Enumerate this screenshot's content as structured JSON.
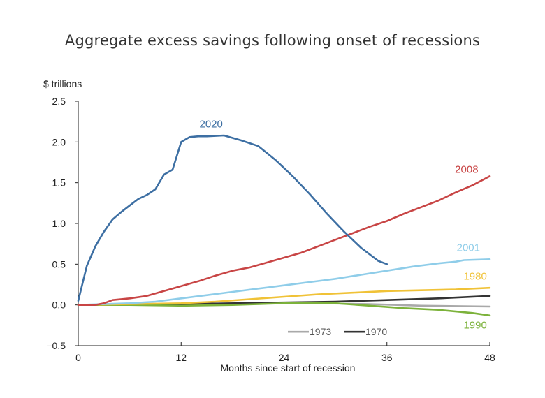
{
  "chart_data": {
    "type": "line",
    "title": "Aggregate excess savings following onset of recessions",
    "xlabel": "Months since start of recession",
    "ylabel": "$ trillions",
    "xlim": [
      0,
      48
    ],
    "ylim": [
      -0.5,
      2.5
    ],
    "xticks": [
      "0",
      "12",
      "24",
      "36",
      "48"
    ],
    "yticks": [
      "2.5",
      "2.0",
      "1.5",
      "1.0",
      "0.5",
      "0.0",
      "−0.5"
    ],
    "grid": false,
    "legend": {
      "placement": "bottom-right",
      "entries": [
        "1973",
        "1970"
      ]
    },
    "series": [
      {
        "name": "2020",
        "color": "#3d6fa3",
        "label_at": [
          15.5,
          2.18
        ],
        "points": [
          [
            0,
            0.05
          ],
          [
            1,
            0.48
          ],
          [
            2,
            0.72
          ],
          [
            3,
            0.9
          ],
          [
            4,
            1.05
          ],
          [
            5,
            1.14
          ],
          [
            6,
            1.22
          ],
          [
            7,
            1.3
          ],
          [
            8,
            1.35
          ],
          [
            9,
            1.42
          ],
          [
            10,
            1.6
          ],
          [
            11,
            1.66
          ],
          [
            12,
            2.0
          ],
          [
            13,
            2.06
          ],
          [
            14,
            2.07
          ],
          [
            15,
            2.07
          ],
          [
            17,
            2.08
          ],
          [
            19,
            2.02
          ],
          [
            21,
            1.95
          ],
          [
            23,
            1.78
          ],
          [
            25,
            1.58
          ],
          [
            27,
            1.36
          ],
          [
            29,
            1.12
          ],
          [
            31,
            0.9
          ],
          [
            33,
            0.7
          ],
          [
            35,
            0.54
          ],
          [
            36,
            0.5
          ]
        ]
      },
      {
        "name": "2008",
        "color": "#c84545",
        "label_at": [
          45.3,
          1.62
        ],
        "points": [
          [
            0,
            0.0
          ],
          [
            2,
            0.0
          ],
          [
            3,
            0.02
          ],
          [
            4,
            0.06
          ],
          [
            6,
            0.08
          ],
          [
            8,
            0.11
          ],
          [
            10,
            0.17
          ],
          [
            12,
            0.23
          ],
          [
            14,
            0.29
          ],
          [
            16,
            0.36
          ],
          [
            18,
            0.42
          ],
          [
            20,
            0.46
          ],
          [
            22,
            0.52
          ],
          [
            24,
            0.58
          ],
          [
            26,
            0.64
          ],
          [
            28,
            0.72
          ],
          [
            30,
            0.8
          ],
          [
            32,
            0.88
          ],
          [
            34,
            0.96
          ],
          [
            36,
            1.03
          ],
          [
            38,
            1.12
          ],
          [
            40,
            1.2
          ],
          [
            42,
            1.28
          ],
          [
            44,
            1.38
          ],
          [
            46,
            1.47
          ],
          [
            48,
            1.58
          ]
        ]
      },
      {
        "name": "2001",
        "color": "#8fcde9",
        "label_at": [
          45.5,
          0.66
        ],
        "points": [
          [
            0,
            0.0
          ],
          [
            6,
            0.02
          ],
          [
            9,
            0.04
          ],
          [
            12,
            0.08
          ],
          [
            15,
            0.12
          ],
          [
            18,
            0.16
          ],
          [
            21,
            0.2
          ],
          [
            24,
            0.24
          ],
          [
            27,
            0.28
          ],
          [
            30,
            0.32
          ],
          [
            33,
            0.37
          ],
          [
            36,
            0.42
          ],
          [
            39,
            0.47
          ],
          [
            42,
            0.51
          ],
          [
            44,
            0.53
          ],
          [
            45,
            0.55
          ],
          [
            48,
            0.56
          ]
        ]
      },
      {
        "name": "1980",
        "color": "#f0c237",
        "label_at": [
          46.3,
          0.31
        ],
        "points": [
          [
            0,
            0.0
          ],
          [
            6,
            0.01
          ],
          [
            12,
            0.02
          ],
          [
            16,
            0.04
          ],
          [
            20,
            0.07
          ],
          [
            24,
            0.1
          ],
          [
            28,
            0.13
          ],
          [
            32,
            0.15
          ],
          [
            36,
            0.17
          ],
          [
            40,
            0.18
          ],
          [
            44,
            0.19
          ],
          [
            48,
            0.21
          ]
        ]
      },
      {
        "name": "1970",
        "color": "#333333",
        "label_at": null,
        "points": [
          [
            0,
            0.0
          ],
          [
            12,
            0.01
          ],
          [
            24,
            0.03
          ],
          [
            30,
            0.04
          ],
          [
            36,
            0.06
          ],
          [
            42,
            0.08
          ],
          [
            48,
            0.11
          ]
        ]
      },
      {
        "name": "1973",
        "color": "#a9a9a9",
        "label_at": null,
        "points": [
          [
            0,
            0.0
          ],
          [
            12,
            0.01
          ],
          [
            20,
            0.02
          ],
          [
            28,
            0.02
          ],
          [
            34,
            0.01
          ],
          [
            40,
            -0.01
          ],
          [
            48,
            -0.02
          ]
        ]
      },
      {
        "name": "1990",
        "color": "#7cb23b",
        "label_at": [
          46.3,
          -0.29
        ],
        "points": [
          [
            0,
            0.0
          ],
          [
            6,
            0.0
          ],
          [
            12,
            -0.01
          ],
          [
            18,
            0.0
          ],
          [
            24,
            0.02
          ],
          [
            30,
            0.02
          ],
          [
            34,
            -0.01
          ],
          [
            38,
            -0.04
          ],
          [
            42,
            -0.06
          ],
          [
            46,
            -0.1
          ],
          [
            48,
            -0.13
          ]
        ]
      }
    ]
  }
}
